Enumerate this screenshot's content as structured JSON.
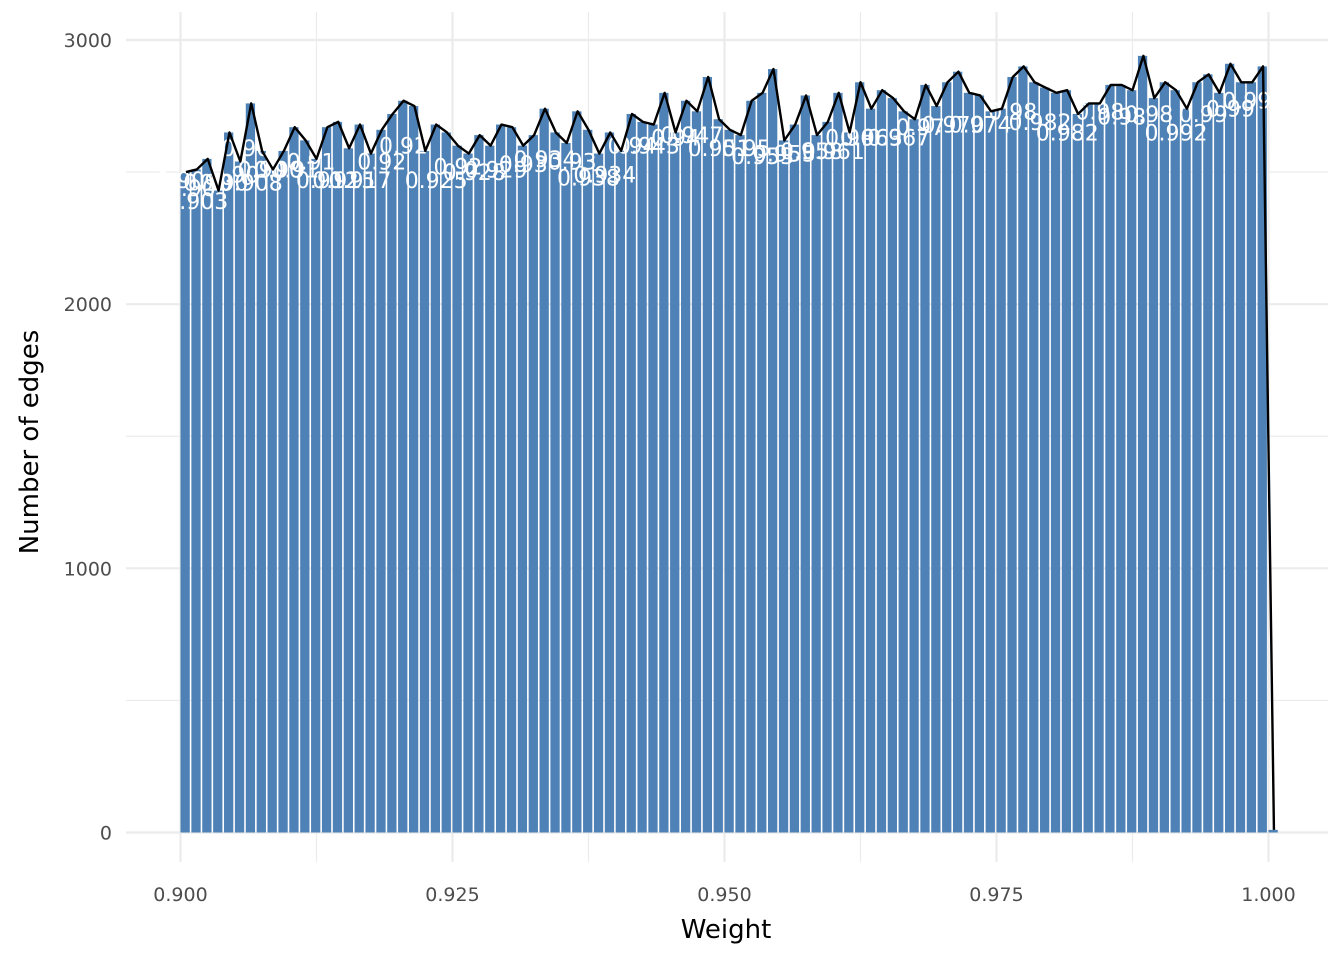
{
  "chart_data": {
    "type": "bar",
    "xlabel": "Weight",
    "ylabel": "Number of edges",
    "xlim": [
      0.9,
      1.0
    ],
    "ylim": [
      0,
      3000
    ],
    "x_ticks": [
      "0.900",
      "0.925",
      "0.950",
      "0.975",
      "1.000"
    ],
    "y_ticks": [
      "0",
      "1000",
      "2000",
      "3000"
    ],
    "grid": true,
    "colors": {
      "bar": "#4e81b5",
      "line": "#000000",
      "grid": "#ebebeb",
      "label": "#ffffff"
    },
    "bin_width": 0.001,
    "x": [
      0.9,
      0.901,
      0.902,
      0.903,
      0.904,
      0.905,
      0.906,
      0.907,
      0.908,
      0.909,
      0.91,
      0.911,
      0.912,
      0.913,
      0.914,
      0.915,
      0.916,
      0.917,
      0.918,
      0.919,
      0.92,
      0.921,
      0.922,
      0.923,
      0.924,
      0.925,
      0.926,
      0.927,
      0.928,
      0.929,
      0.93,
      0.931,
      0.932,
      0.933,
      0.934,
      0.935,
      0.936,
      0.937,
      0.938,
      0.939,
      0.94,
      0.941,
      0.942,
      0.943,
      0.944,
      0.945,
      0.946,
      0.947,
      0.948,
      0.949,
      0.95,
      0.951,
      0.952,
      0.953,
      0.954,
      0.955,
      0.956,
      0.957,
      0.958,
      0.959,
      0.96,
      0.961,
      0.962,
      0.963,
      0.964,
      0.965,
      0.966,
      0.967,
      0.968,
      0.969,
      0.97,
      0.971,
      0.972,
      0.973,
      0.974,
      0.975,
      0.976,
      0.977,
      0.978,
      0.979,
      0.98,
      0.981,
      0.982,
      0.983,
      0.984,
      0.985,
      0.986,
      0.987,
      0.988,
      0.989,
      0.99,
      0.991,
      0.992,
      0.993,
      0.994,
      0.995,
      0.996,
      0.997,
      0.998,
      0.999,
      1.0
    ],
    "values": [
      2500,
      2510,
      2550,
      2430,
      2650,
      2540,
      2760,
      2580,
      2510,
      2580,
      2670,
      2620,
      2550,
      2670,
      2690,
      2590,
      2680,
      2570,
      2660,
      2720,
      2770,
      2750,
      2580,
      2680,
      2650,
      2600,
      2570,
      2640,
      2600,
      2680,
      2670,
      2600,
      2640,
      2740,
      2650,
      2610,
      2730,
      2660,
      2570,
      2650,
      2580,
      2720,
      2690,
      2680,
      2800,
      2650,
      2770,
      2730,
      2860,
      2700,
      2660,
      2640,
      2770,
      2800,
      2890,
      2620,
      2680,
      2790,
      2640,
      2690,
      2800,
      2650,
      2840,
      2740,
      2810,
      2780,
      2730,
      2700,
      2830,
      2750,
      2840,
      2880,
      2800,
      2790,
      2730,
      2740,
      2860,
      2900,
      2840,
      2820,
      2800,
      2810,
      2720,
      2760,
      2760,
      2830,
      2830,
      2810,
      2940,
      2780,
      2840,
      2810,
      2740,
      2840,
      2870,
      2800,
      2910,
      2840,
      2840,
      2900,
      10
    ],
    "label_positions": [
      [
        0.9,
        2440,
        "0.90"
      ],
      [
        0.9015,
        2360,
        "0.903"
      ],
      [
        0.901,
        2410,
        "0.90"
      ],
      [
        0.9025,
        2430,
        "0.90"
      ],
      [
        0.904,
        2430,
        "0.90"
      ],
      [
        0.905,
        2460,
        "0.90"
      ],
      [
        0.9065,
        2430,
        "0.908"
      ],
      [
        0.906,
        2560,
        "0.90"
      ],
      [
        0.9075,
        2480,
        "0.90"
      ],
      [
        0.909,
        2480,
        "0.90"
      ],
      [
        0.9105,
        2480,
        "0.91"
      ],
      [
        0.912,
        2510,
        "0.91"
      ],
      [
        0.9135,
        2440,
        "0.912"
      ],
      [
        0.915,
        2440,
        "0.915"
      ],
      [
        0.9165,
        2440,
        "0.917"
      ],
      [
        0.9185,
        2510,
        "0.92"
      ],
      [
        0.9205,
        2570,
        "0.92"
      ],
      [
        0.9235,
        2440,
        "0.925"
      ],
      [
        0.9255,
        2490,
        "0.92"
      ],
      [
        0.927,
        2470,
        "0.928"
      ],
      [
        0.929,
        2480,
        "0.929"
      ],
      [
        0.9315,
        2500,
        "0.93"
      ],
      [
        0.9335,
        2520,
        "0.934"
      ],
      [
        0.936,
        2510,
        "0.93"
      ],
      [
        0.9375,
        2450,
        "0.938"
      ],
      [
        0.939,
        2460,
        "0.934"
      ],
      [
        0.9415,
        2570,
        "0.94"
      ],
      [
        0.943,
        2570,
        "0.943"
      ],
      [
        0.9455,
        2600,
        "0.94"
      ],
      [
        0.947,
        2610,
        "0.947"
      ],
      [
        0.9495,
        2560,
        "0.951"
      ],
      [
        0.952,
        2560,
        "0.95"
      ],
      [
        0.9535,
        2530,
        "0.953"
      ],
      [
        0.9555,
        2540,
        "0.955"
      ],
      [
        0.958,
        2550,
        "0.958"
      ],
      [
        0.96,
        2550,
        "0.961"
      ],
      [
        0.9615,
        2600,
        "0.96"
      ],
      [
        0.9635,
        2600,
        "0.963"
      ],
      [
        0.966,
        2600,
        "0.967"
      ],
      [
        0.968,
        2640,
        "0.97"
      ],
      [
        0.971,
        2650,
        "0.970"
      ],
      [
        0.9735,
        2650,
        "0.974"
      ],
      [
        0.9765,
        2700,
        "0.98"
      ],
      [
        0.979,
        2660,
        "0.982"
      ],
      [
        0.9815,
        2620,
        "0.982"
      ],
      [
        0.9845,
        2700,
        "0.98"
      ],
      [
        0.9865,
        2680,
        "0.98"
      ],
      [
        0.989,
        2690,
        "0.98"
      ],
      [
        0.9915,
        2620,
        "0.992"
      ],
      [
        0.994,
        2690,
        "0.99"
      ],
      [
        0.9965,
        2710,
        "0.99"
      ],
      [
        0.998,
        2740,
        "0.99"
      ]
    ]
  }
}
